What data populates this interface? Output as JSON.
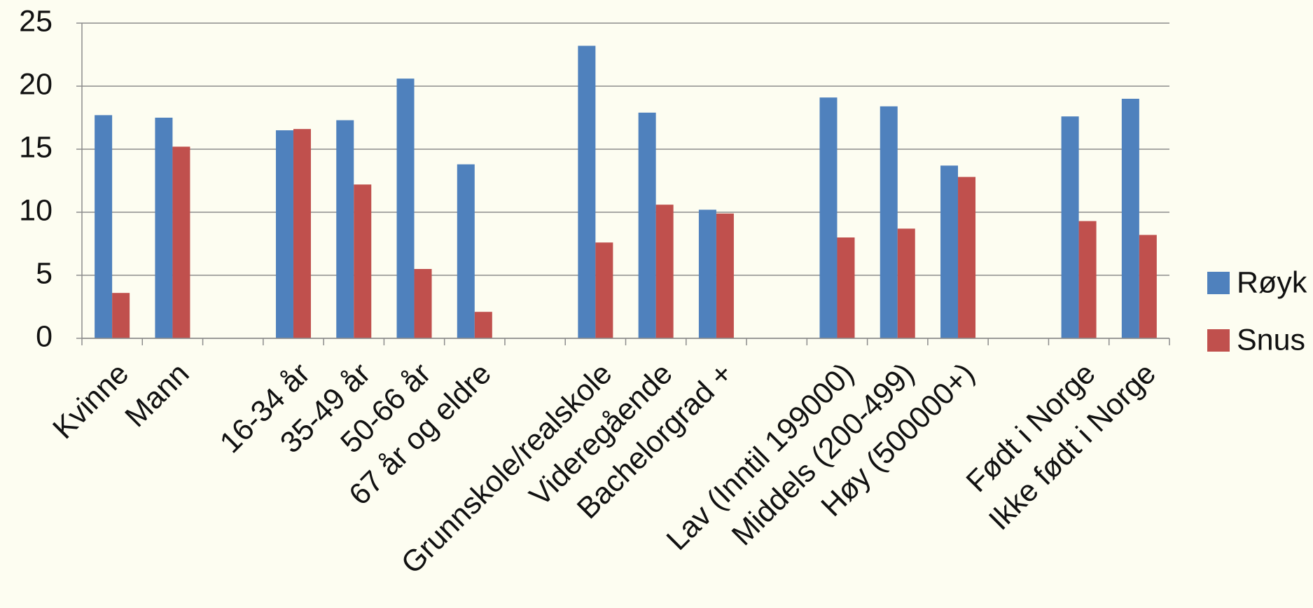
{
  "chart_data": {
    "type": "bar",
    "categories": [
      "Kvinne",
      "Mann",
      null,
      "16-34 år",
      "35-49 år",
      "50-66 år",
      "67 år og eldre",
      null,
      "Grunnskole/realskole",
      "Videregående",
      "Bachelorgrad +",
      null,
      "Lav (Inntil 199000)",
      "Middels (200-499)",
      "Høy (500000+)",
      null,
      "Født i Norge",
      "Ikke født i Norge"
    ],
    "series": [
      {
        "name": "Røyk",
        "color": "#4f81bd",
        "values": [
          17.7,
          17.5,
          null,
          16.5,
          17.3,
          20.6,
          13.8,
          null,
          23.2,
          17.9,
          10.2,
          null,
          19.1,
          18.4,
          13.7,
          null,
          17.6,
          19.0
        ]
      },
      {
        "name": "Snus",
        "color": "#c0504d",
        "values": [
          3.6,
          15.2,
          null,
          16.6,
          12.2,
          5.5,
          2.1,
          null,
          7.6,
          10.6,
          9.9,
          null,
          8.0,
          8.7,
          12.8,
          null,
          9.3,
          8.2
        ]
      }
    ],
    "ylim": [
      0,
      25
    ],
    "yticks": [
      0,
      5,
      10,
      15,
      20,
      25
    ],
    "grid": true,
    "legend": "right"
  }
}
